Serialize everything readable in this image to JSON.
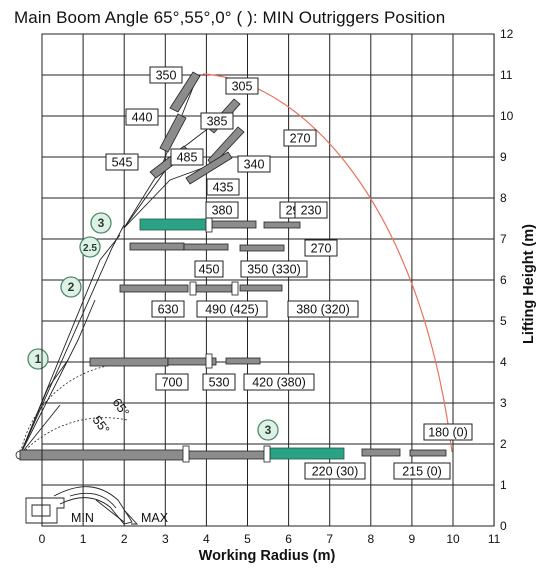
{
  "title": "Main Boom Angle 65°,55°,0°   (  ): MIN Outriggers Position",
  "xlabel": "Working Radius (m)",
  "ylabel": "Lifting Height (m)",
  "x_ticks": [
    "0",
    "1",
    "2",
    "3",
    "4",
    "5",
    "6",
    "7",
    "8",
    "9",
    "10",
    "11"
  ],
  "y_ticks": [
    "0",
    "1",
    "2",
    "3",
    "4",
    "5",
    "6",
    "7",
    "8",
    "9",
    "10",
    "11",
    "12"
  ],
  "boom_angle_labels": [
    "65°",
    "55°"
  ],
  "outrigger_labels": {
    "min": "MIN",
    "max": "MAX"
  },
  "boom_section_badges": [
    "1",
    "2",
    "2.5",
    "3",
    "3"
  ],
  "colors": {
    "boom": "#8c8c8c",
    "boom_extended": "#2aa283",
    "envelope": "#e8735a",
    "badge": "#dff0e6"
  },
  "capacity_labels_kg": [
    "350",
    "305",
    "440",
    "385",
    "270",
    "545",
    "485",
    "340",
    "435",
    "380",
    "295",
    "230",
    "450",
    "350 (330)",
    "270",
    "630",
    "490 (425)",
    "380 (320)",
    "700",
    "530",
    "420 (380)",
    "180 (0)",
    "220 (30)",
    "215 (0)"
  ]
}
